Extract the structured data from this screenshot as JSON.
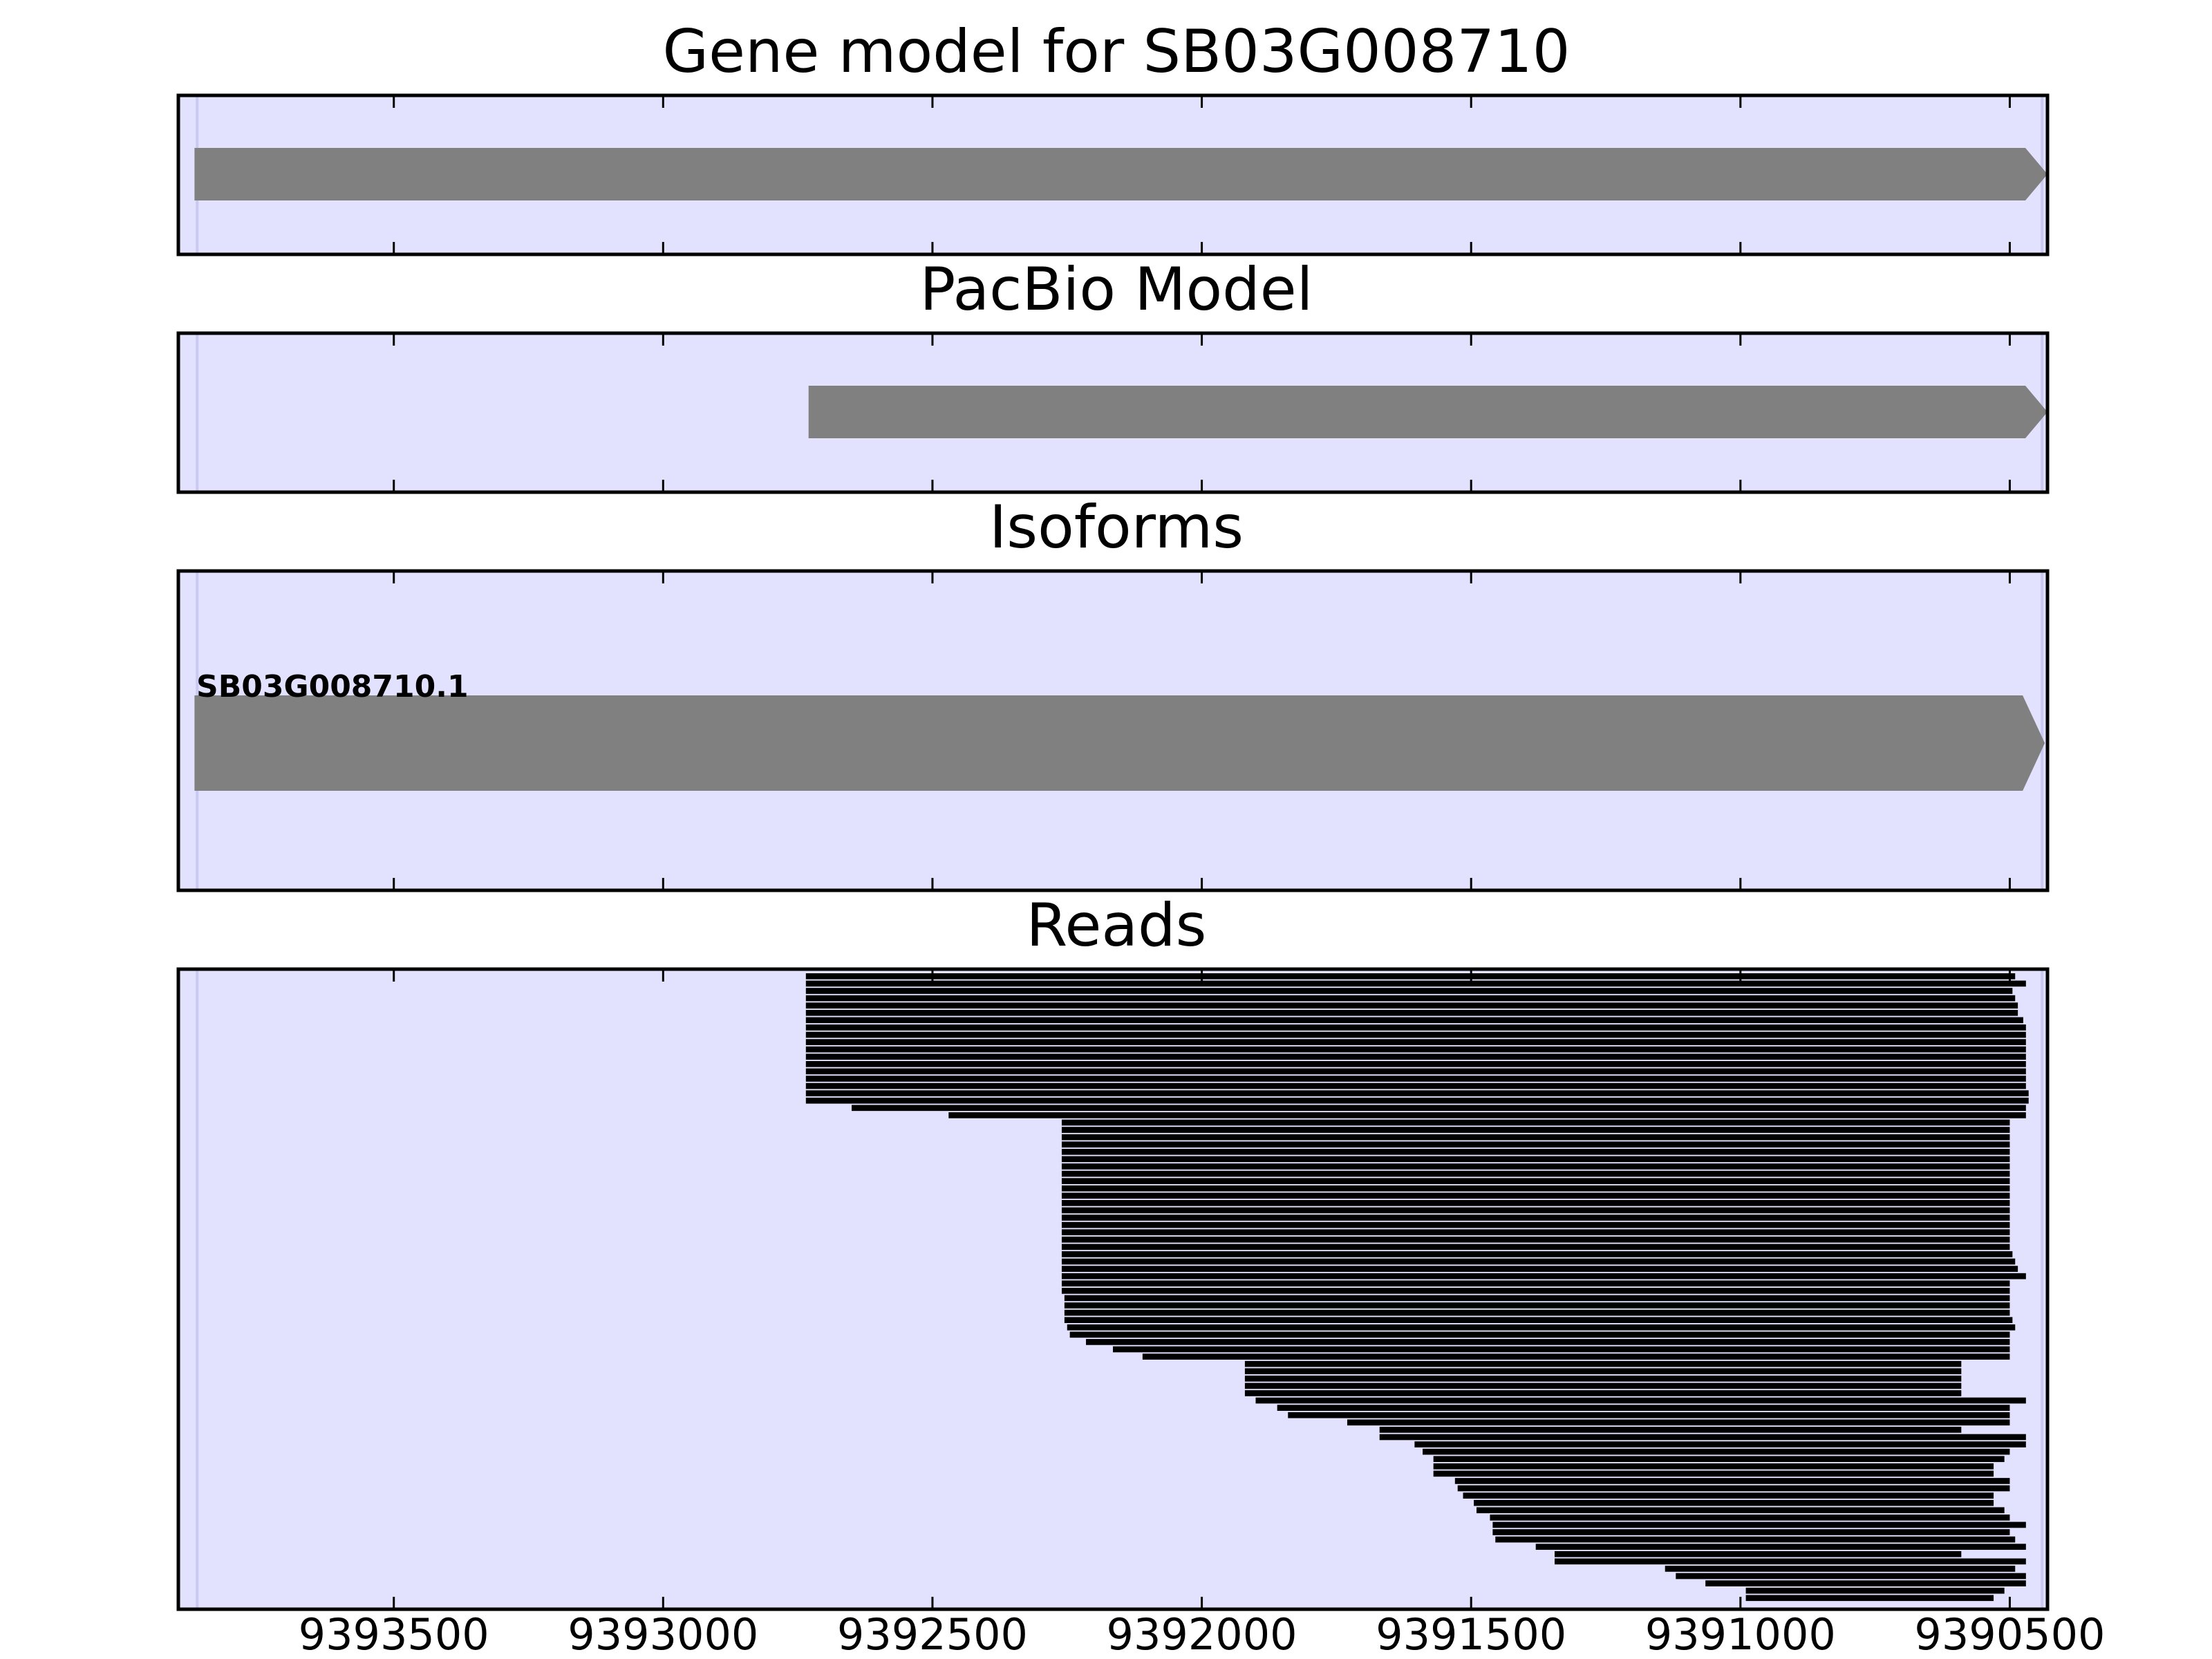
{
  "chart_data": {
    "type": "gene-track",
    "x_axis": {
      "reversed": true,
      "range": [
        9393900,
        9390430
      ],
      "ticks": [
        9393500,
        9393000,
        9392500,
        9392000,
        9391500,
        9391000,
        9390500
      ]
    },
    "gene_span": [
      9393865,
      9390440
    ],
    "colors": {
      "background": "#e2e2fe",
      "span_line": "#c9c9f2",
      "feature": "#808080",
      "read": "#000000"
    },
    "panels": [
      {
        "id": "gene-model",
        "title": "Gene model for SB03G008710",
        "features": [
          {
            "start": 9393870,
            "end": 9390430
          }
        ]
      },
      {
        "id": "pacbio-model",
        "title": "PacBio Model",
        "features": [
          {
            "start": 9392730,
            "end": 9390430
          }
        ]
      },
      {
        "id": "isoforms",
        "title": "Isoforms",
        "features": [
          {
            "name": "SB03G008710.1",
            "start": 9393870,
            "end": 9390435
          }
        ]
      },
      {
        "id": "reads",
        "title": "Reads",
        "reads": [
          [
            9392735,
            9390490
          ],
          [
            9392735,
            9390470
          ],
          [
            9392735,
            9390495
          ],
          [
            9392735,
            9390490
          ],
          [
            9392735,
            9390485
          ],
          [
            9392735,
            9390485
          ],
          [
            9392735,
            9390475
          ],
          [
            9392735,
            9390470
          ],
          [
            9392735,
            9390470
          ],
          [
            9392735,
            9390470
          ],
          [
            9392735,
            9390470
          ],
          [
            9392735,
            9390470
          ],
          [
            9392735,
            9390470
          ],
          [
            9392735,
            9390470
          ],
          [
            9392735,
            9390470
          ],
          [
            9392735,
            9390470
          ],
          [
            9392735,
            9390465
          ],
          [
            9392735,
            9390465
          ],
          [
            9392650,
            9390470
          ],
          [
            9392470,
            9390470
          ],
          [
            9392260,
            9390500
          ],
          [
            9392260,
            9390500
          ],
          [
            9392260,
            9390500
          ],
          [
            9392260,
            9390500
          ],
          [
            9392260,
            9390500
          ],
          [
            9392260,
            9390500
          ],
          [
            9392260,
            9390500
          ],
          [
            9392260,
            9390500
          ],
          [
            9392260,
            9390500
          ],
          [
            9392260,
            9390500
          ],
          [
            9392260,
            9390500
          ],
          [
            9392260,
            9390500
          ],
          [
            9392260,
            9390500
          ],
          [
            9392260,
            9390500
          ],
          [
            9392260,
            9390500
          ],
          [
            9392260,
            9390500
          ],
          [
            9392260,
            9390500
          ],
          [
            9392260,
            9390500
          ],
          [
            9392260,
            9390495
          ],
          [
            9392260,
            9390490
          ],
          [
            9392260,
            9390485
          ],
          [
            9392260,
            9390470
          ],
          [
            9392260,
            9390500
          ],
          [
            9392260,
            9390500
          ],
          [
            9392255,
            9390500
          ],
          [
            9392255,
            9390500
          ],
          [
            9392255,
            9390500
          ],
          [
            9392255,
            9390495
          ],
          [
            9392250,
            9390490
          ],
          [
            9392245,
            9390500
          ],
          [
            9392215,
            9390500
          ],
          [
            9392165,
            9390500
          ],
          [
            9392110,
            9390500
          ],
          [
            9391920,
            9390590
          ],
          [
            9391920,
            9390590
          ],
          [
            9391920,
            9390590
          ],
          [
            9391920,
            9390590
          ],
          [
            9391920,
            9390590
          ],
          [
            9391900,
            9390470
          ],
          [
            9391860,
            9390500
          ],
          [
            9391840,
            9390500
          ],
          [
            9391730,
            9390500
          ],
          [
            9391670,
            9390590
          ],
          [
            9391670,
            9390470
          ],
          [
            9391605,
            9390470
          ],
          [
            9391590,
            9390500
          ],
          [
            9391570,
            9390510
          ],
          [
            9391570,
            9390530
          ],
          [
            9391570,
            9390530
          ],
          [
            9391530,
            9390500
          ],
          [
            9391525,
            9390500
          ],
          [
            9391515,
            9390530
          ],
          [
            9391495,
            9390530
          ],
          [
            9391490,
            9390510
          ],
          [
            9391465,
            9390500
          ],
          [
            9391460,
            9390470
          ],
          [
            9391460,
            9390500
          ],
          [
            9391455,
            9390490
          ],
          [
            9391380,
            9390470
          ],
          [
            9391345,
            9390590
          ],
          [
            9391345,
            9390470
          ],
          [
            9391140,
            9390490
          ],
          [
            9391120,
            9390470
          ],
          [
            9391065,
            9390470
          ],
          [
            9390990,
            9390510
          ],
          [
            9390990,
            9390530
          ]
        ]
      }
    ]
  }
}
